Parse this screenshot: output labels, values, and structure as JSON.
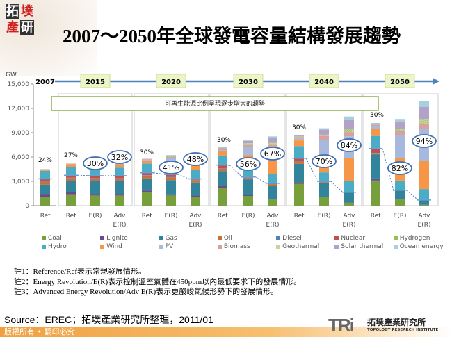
{
  "logo": {
    "chars": [
      "拓",
      "墣",
      "產",
      "研"
    ]
  },
  "title": "2007～2050年全球發電容量結構發展趨勢",
  "chart_data": {
    "type": "bar",
    "stacked": true,
    "ylabel": "GW",
    "ylim": [
      0,
      15000
    ],
    "yticks": [
      "0",
      "3,000",
      "6,000",
      "9,000",
      "12,000",
      "15,000"
    ],
    "yticks_values": [
      0,
      3000,
      6000,
      9000,
      12000,
      15000
    ],
    "grid": false,
    "legend_placement": "bottom",
    "timeline": [
      "2007",
      "2015",
      "2020",
      "2030",
      "2040",
      "2050"
    ],
    "annotation": "可再生能源比例呈現逐步增大的趨勢",
    "groups": [
      {
        "year": "2007",
        "bars": [
          {
            "label": "Ref",
            "share": "24%"
          }
        ]
      },
      {
        "year": "2015",
        "bars": [
          {
            "label": "Ref",
            "share": "27%"
          },
          {
            "label": "E(R)",
            "share": "30%"
          },
          {
            "label": "Adv E(R)",
            "share": "32%"
          }
        ]
      },
      {
        "year": "2020",
        "bars": [
          {
            "label": "Ref",
            "share": "30%"
          },
          {
            "label": "E(R)",
            "share": "41%"
          },
          {
            "label": "Adv E(R)",
            "share": "48%"
          }
        ]
      },
      {
        "year": "2030",
        "bars": [
          {
            "label": "Ref",
            "share": "30%"
          },
          {
            "label": "E(R)",
            "share": "56%"
          },
          {
            "label": "Adv E(R)",
            "share": "67%"
          }
        ]
      },
      {
        "year": "2040",
        "bars": [
          {
            "label": "Ref",
            "share": "30%"
          },
          {
            "label": "E(R)",
            "share": "70%"
          },
          {
            "label": "Adv E(R)",
            "share": "84%"
          }
        ]
      },
      {
        "year": "2050",
        "bars": [
          {
            "label": "Ref",
            "share": "30%"
          },
          {
            "label": "E(R)",
            "share": "82%"
          },
          {
            "label": "Adv E(R)",
            "share": "94%"
          }
        ]
      }
    ],
    "series": [
      {
        "name": "Coal",
        "color": "#77a03c",
        "values": [
          1100,
          1400,
          1250,
          1250,
          1650,
          1250,
          1100,
          2200,
          1200,
          750,
          2700,
          1050,
          350,
          3100,
          750,
          100
        ]
      },
      {
        "name": "Lignite",
        "color": "#6a4a8c",
        "values": [
          350,
          250,
          200,
          200,
          200,
          150,
          150,
          200,
          100,
          50,
          200,
          50,
          30,
          250,
          30,
          0
        ]
      },
      {
        "name": "Gas",
        "color": "#31849b",
        "values": [
          1150,
          1400,
          1550,
          1550,
          1500,
          1750,
          1600,
          1850,
          1950,
          1650,
          2250,
          1650,
          1220,
          2950,
          1070,
          600
        ]
      },
      {
        "name": "Oil",
        "color": "#c8703a",
        "values": [
          350,
          350,
          350,
          350,
          350,
          350,
          300,
          300,
          150,
          200,
          300,
          150,
          50,
          150,
          50,
          0
        ]
      },
      {
        "name": "Diesel",
        "color": "#4f81bd",
        "values": [
          50,
          50,
          50,
          50,
          50,
          50,
          50,
          50,
          50,
          50,
          50,
          50,
          0,
          50,
          0,
          0
        ]
      },
      {
        "name": "Nuclear",
        "color": "#c0504d",
        "values": [
          300,
          300,
          300,
          300,
          300,
          300,
          100,
          400,
          100,
          50,
          350,
          50,
          0,
          550,
          0,
          0
        ]
      },
      {
        "name": "Hydrogen",
        "color": "#9bbb59",
        "values": [
          0,
          0,
          0,
          0,
          0,
          0,
          0,
          0,
          0,
          0,
          0,
          0,
          0,
          0,
          0,
          0
        ]
      },
      {
        "name": "Hydro",
        "color": "#4bacc6",
        "values": [
          1000,
          1050,
          800,
          1000,
          1150,
          850,
          1150,
          1200,
          800,
          1150,
          1500,
          1100,
          1350,
          1550,
          1200,
          1350
        ]
      },
      {
        "name": "Wind",
        "color": "#f79646",
        "values": [
          150,
          300,
          300,
          400,
          350,
          800,
          850,
          550,
          1900,
          1650,
          700,
          2200,
          2850,
          900,
          2800,
          3450
        ]
      },
      {
        "name": "PV",
        "color": "#a7b9dc",
        "values": [
          10,
          30,
          80,
          100,
          80,
          350,
          400,
          100,
          1000,
          1700,
          200,
          1800,
          2700,
          350,
          2800,
          4000
        ]
      },
      {
        "name": "Biomass",
        "color": "#d9a0a0",
        "values": [
          40,
          50,
          80,
          100,
          100,
          150,
          200,
          150,
          300,
          300,
          200,
          500,
          500,
          150,
          550,
          550
        ]
      },
      {
        "name": "Geothermal",
        "color": "#c3d69b",
        "values": [
          10,
          10,
          30,
          50,
          30,
          100,
          100,
          50,
          150,
          200,
          100,
          150,
          400,
          50,
          200,
          650
        ]
      },
      {
        "name": "Solar thermal",
        "color": "#b3a2c7",
        "values": [
          0,
          10,
          30,
          50,
          30,
          100,
          200,
          100,
          300,
          600,
          100,
          650,
          1150,
          100,
          950,
          1500
        ]
      },
      {
        "name": "Ocean energy",
        "color": "#a5d0e0",
        "values": [
          0,
          0,
          0,
          20,
          0,
          50,
          50,
          50,
          50,
          200,
          50,
          150,
          400,
          50,
          300,
          700
        ]
      }
    ]
  },
  "notes": [
    "註1：Reference/Ref表示常規發展情形。",
    "註2：Energy Revolution/E(R)表示控制溫室氣體在450ppm以內最低要求下的發展情形。",
    "註3：Advanced Energy Revolution/Adv E(R)表示更嚴峻氣候形勢下的發展情形。"
  ],
  "source": "Source：EREC；拓墣產業研究所整理，2011/01",
  "footer": "版權所有 • 翻印必究",
  "brand": {
    "mark": "TRi",
    "name_cn": "拓墣產業研究所",
    "name_en": "TOPOLOGY RESEARCH INSTITUTE"
  }
}
